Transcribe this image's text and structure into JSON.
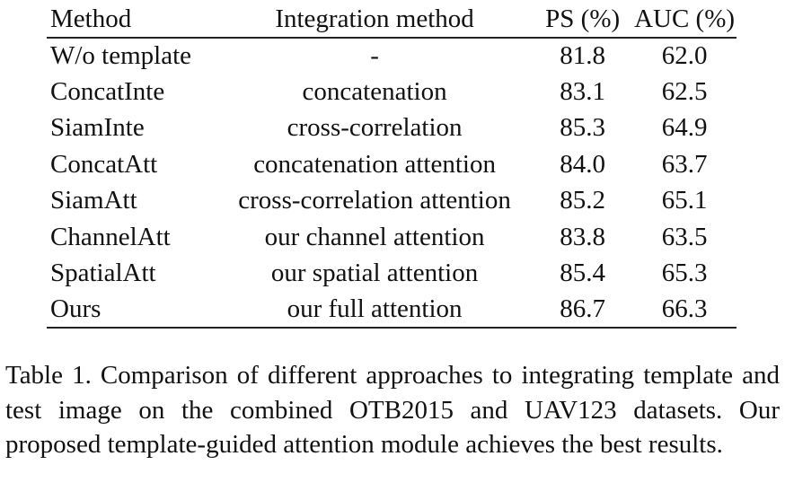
{
  "table": {
    "headers": {
      "method": "Method",
      "integration": "Integration method",
      "ps": "PS (%)",
      "auc": "AUC (%)"
    },
    "rows": [
      {
        "method": "W/o template",
        "integration": "-",
        "ps": "81.8",
        "auc": "62.0"
      },
      {
        "method": "ConcatInte",
        "integration": "concatenation",
        "ps": "83.1",
        "auc": "62.5"
      },
      {
        "method": "SiamInte",
        "integration": "cross-correlation",
        "ps": "85.3",
        "auc": "64.9"
      },
      {
        "method": "ConcatAtt",
        "integration": "concatenation attention",
        "ps": "84.0",
        "auc": "63.7"
      },
      {
        "method": "SiamAtt",
        "integration": "cross-correlation attention",
        "ps": "85.2",
        "auc": "65.1"
      },
      {
        "method": "ChannelAtt",
        "integration": "our channel attention",
        "ps": "83.8",
        "auc": "63.5"
      },
      {
        "method": "SpatialAtt",
        "integration": "our spatial attention",
        "ps": "85.4",
        "auc": "65.3"
      },
      {
        "method": "Ours",
        "integration": "our full attention",
        "ps": "86.7",
        "auc": "66.3"
      }
    ]
  },
  "caption": "Table 1. Comparison of different approaches to integrating template and test image on the combined OTB2015 and UAV123 datasets. Our proposed template-guided attention module achieves the best results."
}
